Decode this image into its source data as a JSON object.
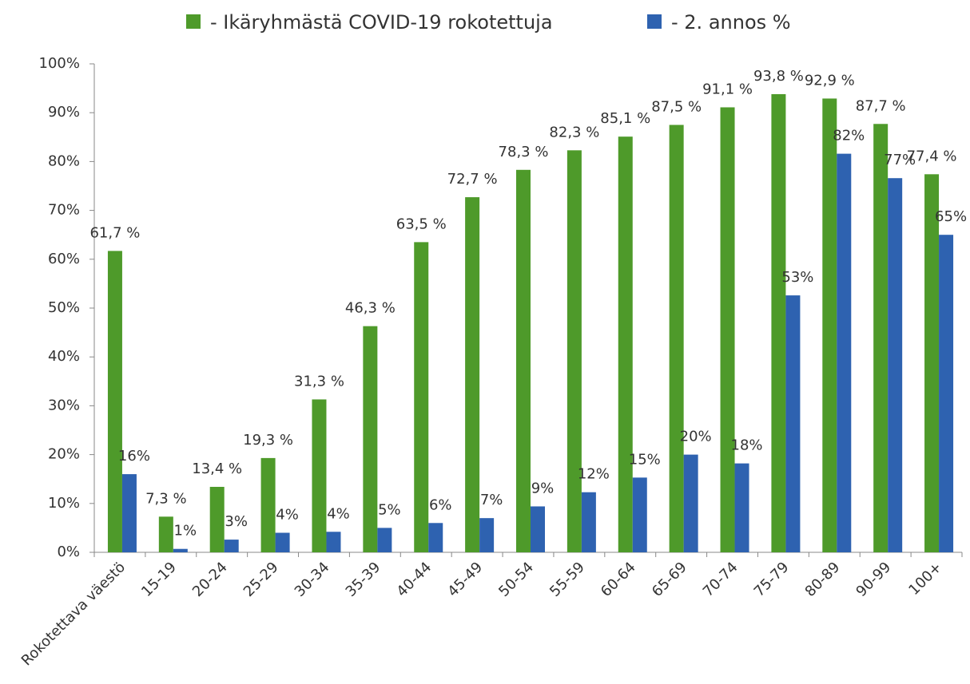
{
  "chart_data": {
    "type": "bar",
    "categories": [
      "Rokotettava väestö",
      "15-19",
      "20-24",
      "25-29",
      "30-34",
      "35-39",
      "40-44",
      "45-49",
      "50-54",
      "55-59",
      "60-64",
      "65-69",
      "70-74",
      "75-79",
      "80-89",
      "90-99",
      "100+"
    ],
    "series": [
      {
        "name": "- Ikäryhmästä COVID-19 rokotettuja",
        "color": "#4e9a2a",
        "values": [
          61.7,
          7.3,
          13.4,
          19.3,
          31.3,
          46.3,
          63.5,
          72.7,
          78.3,
          82.3,
          85.1,
          87.5,
          91.1,
          93.8,
          92.9,
          87.7,
          77.4
        ],
        "value_labels": [
          "61,7 %",
          "7,3 %",
          "13,4 %",
          "19,3 %",
          "31,3 %",
          "46,3 %",
          "63,5 %",
          "72,7 %",
          "78,3 %",
          "82,3 %",
          "85,1 %",
          "87,5 %",
          "91,1 %",
          "93,8 %",
          "92,9 %",
          "87,7 %",
          "77,4 %"
        ]
      },
      {
        "name": "- 2. annos %",
        "color": "#2e62b0",
        "values": [
          16,
          0.7,
          2.6,
          4,
          4.2,
          5,
          6,
          7,
          9.4,
          12.3,
          15.3,
          20,
          18.2,
          52.6,
          81.6,
          76.6,
          65
        ],
        "value_labels": [
          "16%",
          "1%",
          "3%",
          "4%",
          "4%",
          "5%",
          "6%",
          "7%",
          "9%",
          "12%",
          "15%",
          "20%",
          "18%",
          "53%",
          "82%",
          "77%",
          "65%"
        ]
      }
    ],
    "ylim": [
      0,
      100
    ],
    "yticks": [
      {
        "value": 0,
        "label": "0%"
      },
      {
        "value": 10,
        "label": "10%"
      },
      {
        "value": 20,
        "label": "20%"
      },
      {
        "value": 30,
        "label": "30%"
      },
      {
        "value": 40,
        "label": "40%"
      },
      {
        "value": 50,
        "label": "50%"
      },
      {
        "value": 60,
        "label": "60%"
      },
      {
        "value": 70,
        "label": "70%"
      },
      {
        "value": 80,
        "label": "80%"
      },
      {
        "value": 90,
        "label": "90%"
      },
      {
        "value": 100,
        "label": "100%"
      }
    ],
    "legend": "top"
  }
}
